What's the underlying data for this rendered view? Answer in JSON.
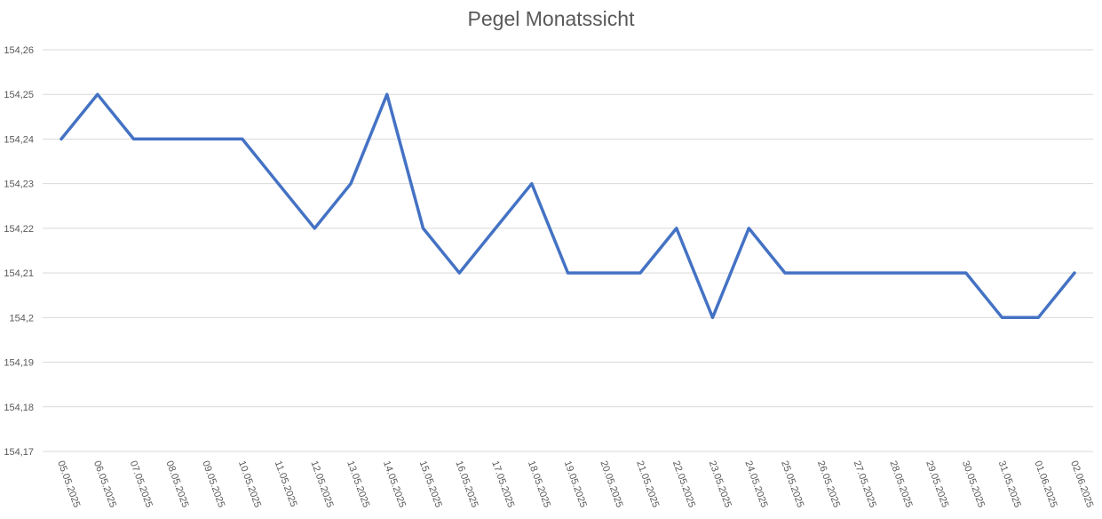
{
  "chart_data": {
    "type": "line",
    "title": "Pegel Monatssicht",
    "xlabel": "",
    "ylabel": "",
    "ylim": [
      154.17,
      154.26
    ],
    "y_ticks": [
      "154,17",
      "154,18",
      "154,19",
      "154,2",
      "154,21",
      "154,22",
      "154,23",
      "154,24",
      "154,25",
      "154,26"
    ],
    "grid": true,
    "legend": "none",
    "line_color": "#4472C4",
    "grid_color": "#d9d9d9",
    "categories": [
      "05.05.2025",
      "06.05.2025",
      "07.05.2025",
      "08.05.2025",
      "09.05.2025",
      "10.05.2025",
      "11.05.2025",
      "12.05.2025",
      "13.05.2025",
      "14.05.2025",
      "15.05.2025",
      "16.05.2025",
      "17.05.2025",
      "18.05.2025",
      "19.05.2025",
      "20.05.2025",
      "21.05.2025",
      "22.05.2025",
      "23.05.2025",
      "24.05.2025",
      "25.05.2025",
      "26.05.2025",
      "27.05.2025",
      "28.05.2025",
      "29.05.2025",
      "30.05.2025",
      "31.05.2025",
      "01.06.2025",
      "02.06.2025"
    ],
    "series": [
      {
        "values": [
          154.24,
          154.25,
          154.24,
          154.24,
          154.24,
          154.24,
          154.23,
          154.22,
          154.23,
          154.25,
          154.22,
          154.21,
          154.22,
          154.23,
          154.21,
          154.21,
          154.21,
          154.22,
          154.2,
          154.22,
          154.21,
          154.21,
          154.21,
          154.21,
          154.21,
          154.21,
          154.2,
          154.2,
          154.21
        ]
      }
    ]
  }
}
